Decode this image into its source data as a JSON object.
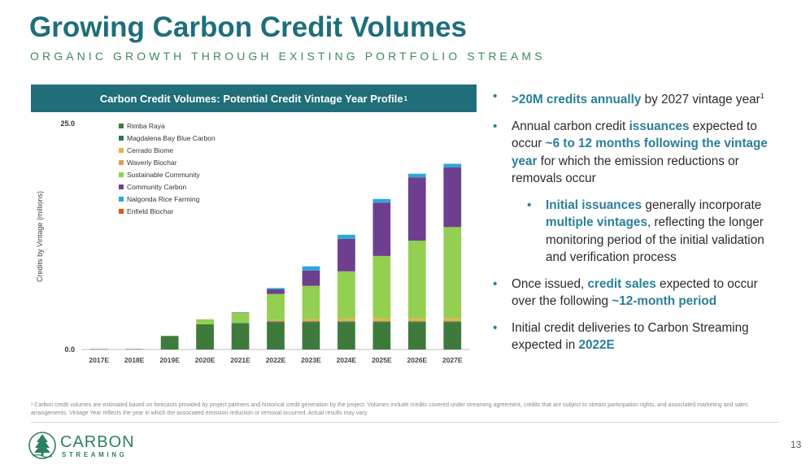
{
  "header": {
    "title": "Growing Carbon Credit Volumes",
    "subtitle": "ORGANIC GROWTH THROUGH EXISTING PORTFOLIO STREAMS"
  },
  "chart_panel": {
    "title": "Carbon Credit Volumes: Potential Credit Vintage Year Profile",
    "title_sup": "1"
  },
  "chart_data": {
    "type": "bar",
    "stacked": true,
    "ylabel": "Credits by Vintage (millions)",
    "ylim": [
      0,
      25
    ],
    "yticks": [
      "25.0",
      "0.0"
    ],
    "grid": false,
    "legend_position": "top-left",
    "categories": [
      "2017E",
      "2018E",
      "2019E",
      "2020E",
      "2021E",
      "2022E",
      "2023E",
      "2024E",
      "2025E",
      "2026E",
      "2027E"
    ],
    "series": [
      {
        "name": "Rimba Raya",
        "color": "#3f7a3d",
        "values": [
          0.05,
          0.05,
          1.5,
          2.8,
          2.9,
          3.0,
          3.0,
          3.0,
          3.0,
          3.0,
          3.0
        ]
      },
      {
        "name": "Magdalena Bay Blue Carbon",
        "color": "#2e6f6d",
        "values": [
          0,
          0,
          0,
          0,
          0.05,
          0.1,
          0.1,
          0.1,
          0.1,
          0.1,
          0.1
        ]
      },
      {
        "name": "Cerrado Biome",
        "color": "#e3b43c",
        "values": [
          0,
          0,
          0,
          0,
          0,
          0.1,
          0.2,
          0.3,
          0.3,
          0.3,
          0.3
        ]
      },
      {
        "name": "Waverly Biochar",
        "color": "#e59a52",
        "values": [
          0,
          0,
          0,
          0,
          0,
          0.05,
          0.05,
          0.05,
          0.05,
          0.05,
          0.05
        ]
      },
      {
        "name": "Sustainable Community",
        "color": "#93cf50",
        "values": [
          0,
          0,
          0,
          0.55,
          1.1,
          2.9,
          3.7,
          5.2,
          6.9,
          8.6,
          10.1
        ]
      },
      {
        "name": "Community Carbon",
        "color": "#6e3f8f",
        "values": [
          0,
          0,
          0,
          0,
          0.05,
          0.5,
          1.7,
          3.6,
          5.9,
          7.0,
          6.6
        ]
      },
      {
        "name": "Nalgonda Rice Farming",
        "color": "#2ba8d8",
        "values": [
          0,
          0,
          0,
          0,
          0,
          0.15,
          0.45,
          0.45,
          0.4,
          0.4,
          0.4
        ]
      },
      {
        "name": "Enfield Biochar",
        "color": "#d5561e",
        "values": [
          0,
          0,
          0,
          0,
          0,
          0,
          0,
          0,
          0,
          0,
          0
        ]
      }
    ]
  },
  "bullets": [
    {
      "parts": [
        {
          "t": ">20M credits annually",
          "h": true
        },
        {
          "t": " by 2027 vintage year"
        }
      ],
      "sup": "1"
    },
    {
      "parts": [
        {
          "t": "Annual carbon credit "
        },
        {
          "t": "issuances",
          "h": true
        },
        {
          "t": " expected to occur "
        },
        {
          "t": "~6 to 12 months following the vintage year",
          "h": true
        },
        {
          "t": " for which the emission reductions or removals occur"
        }
      ]
    },
    {
      "sub": true,
      "parts": [
        {
          "t": "Initial issuances",
          "h": true
        },
        {
          "t": " generally incorporate "
        },
        {
          "t": "multiple vintages",
          "h": true
        },
        {
          "t": ", reflecting the longer monitoring period of the initial validation and verification process"
        }
      ]
    },
    {
      "parts": [
        {
          "t": "Once issued, "
        },
        {
          "t": "credit sales",
          "h": true
        },
        {
          "t": " expected to occur over the following "
        },
        {
          "t": "~12-month period",
          "h": true
        }
      ]
    },
    {
      "parts": [
        {
          "t": "Initial credit deliveries to Carbon Streaming expected in "
        },
        {
          "t": "2022E",
          "h": true
        }
      ]
    }
  ],
  "bullet_glyph": "•",
  "footnote": "¹ Carbon credit volumes are estimated based on forecasts provided by project partners and historical credit generation by the project. Volumes include credits covered under streaming agreement, credits that are subject to stream participation rights, and associated marketing and sales arrangements. Vintage Year reflects the year in which the associated emission reduction or removal occurred. Actual results may vary.",
  "logo": {
    "line1": "CARBON",
    "line2": "STREAMING",
    "icon": "pine-tree-icon"
  },
  "page_number": "13"
}
